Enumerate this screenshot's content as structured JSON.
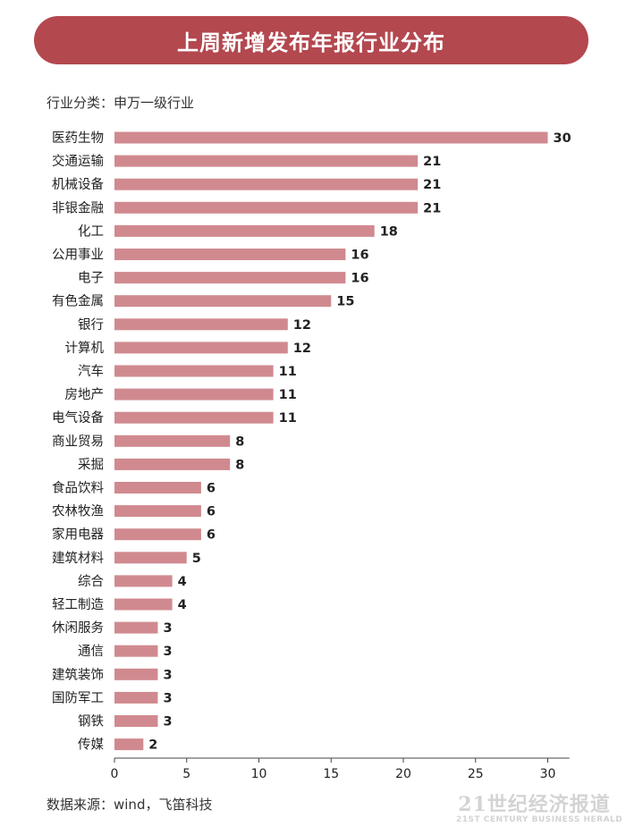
{
  "header": {
    "title": "上周新增发布年报行业分布",
    "subtitle": "行业分类：申万一级行业"
  },
  "footer": {
    "source": "数据来源：wind，飞笛科技",
    "watermark_main": "21世纪经济报道",
    "watermark_sub": "21ST CENTURY BUSINESS HERALD"
  },
  "chart_data": {
    "type": "bar",
    "orientation": "horizontal",
    "categories": [
      "医药生物",
      "交通运输",
      "机械设备",
      "非银金融",
      "化工",
      "公用事业",
      "电子",
      "有色金属",
      "银行",
      "计算机",
      "汽车",
      "房地产",
      "电气设备",
      "商业贸易",
      "采掘",
      "食品饮料",
      "农林牧渔",
      "家用电器",
      "建筑材料",
      "综合",
      "轻工制造",
      "休闲服务",
      "通信",
      "建筑装饰",
      "国防军工",
      "钢铁",
      "传媒"
    ],
    "values": [
      30,
      21,
      21,
      21,
      18,
      16,
      16,
      15,
      12,
      12,
      11,
      11,
      11,
      8,
      8,
      6,
      6,
      6,
      5,
      4,
      4,
      3,
      3,
      3,
      3,
      3,
      2
    ],
    "xlim": [
      0,
      31.5
    ],
    "xticks": [
      0,
      5,
      10,
      15,
      20,
      25,
      30
    ],
    "bar_color": "#d08a8f",
    "grid": false
  }
}
